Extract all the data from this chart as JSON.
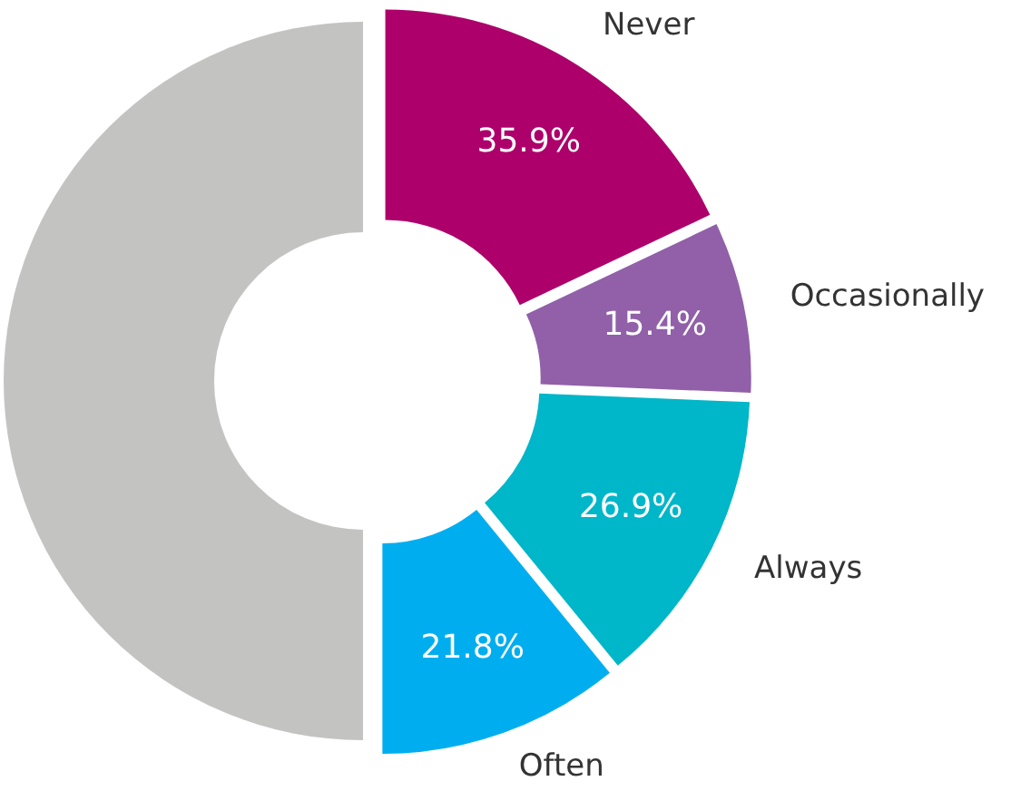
{
  "chart_data": {
    "type": "donut",
    "categories": [
      "Never",
      "Occasionally",
      "Always",
      "Often",
      null
    ],
    "values": [
      35.9,
      15.4,
      26.9,
      21.8,
      100
    ],
    "colors": [
      "#ad006b",
      "#9160a9",
      "#00b6c9",
      "#00aeef",
      "#c3c4c2"
    ],
    "value_labels": [
      "35.9%",
      "15.4%",
      "26.9%",
      "21.8%",
      null
    ]
  }
}
